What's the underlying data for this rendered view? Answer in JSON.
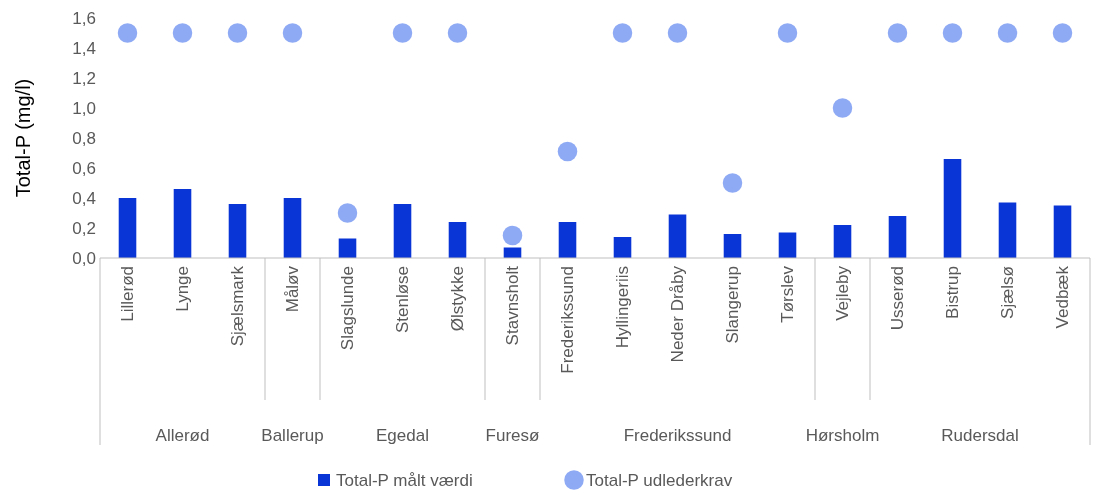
{
  "chart_data": {
    "type": "bar",
    "ylabel": "Total-P (mg/l)",
    "categories": [
      "Lillerød",
      "Lynge",
      "Sjælsmark",
      "Måløv",
      "Slagslunde",
      "Stenløse",
      "Ølstykke",
      "Stavnsholt",
      "Frederikssund",
      "Hyllingeriis",
      "Neder Dråby",
      "Slangerup",
      "Tørslev",
      "Vejleby",
      "Usserød",
      "Bistrup",
      "Sjælsø",
      "Vedbæk"
    ],
    "series": [
      {
        "name": "Total-P målt værdi",
        "color": "#0a35d6",
        "values": [
          0.4,
          0.46,
          0.36,
          0.4,
          0.13,
          0.36,
          0.24,
          0.07,
          0.24,
          0.14,
          0.29,
          0.16,
          0.17,
          0.22,
          0.28,
          0.66,
          0.37,
          0.35
        ]
      },
      {
        "name": "Total-P udlederkrav",
        "type": "scatter",
        "color": "#8faaf5",
        "values": [
          1.5,
          1.5,
          1.5,
          1.5,
          0.3,
          1.5,
          1.5,
          0.15,
          0.71,
          1.5,
          1.5,
          0.5,
          1.5,
          1.0,
          1.5,
          1.5,
          1.5,
          1.5
        ]
      }
    ],
    "ylim": [
      0,
      1.6
    ],
    "yticks": [
      {
        "value": 0,
        "label": "0,0"
      },
      {
        "value": 0.2,
        "label": "0,2"
      },
      {
        "value": 0.4,
        "label": "0,4"
      },
      {
        "value": 0.6,
        "label": "0,6"
      },
      {
        "value": 0.8,
        "label": "0,8"
      },
      {
        "value": 1.0,
        "label": "1,0"
      },
      {
        "value": 1.2,
        "label": "1,2"
      },
      {
        "value": 1.4,
        "label": "1,4"
      },
      {
        "value": 1.6,
        "label": "1,6"
      }
    ],
    "annotations": [
      "Allerød",
      "Ballerup",
      "Egedal",
      "Furesø",
      "Frederikssund",
      "Hørsholm",
      "Rudersdal"
    ],
    "marker": "circle",
    "legend": "bottom",
    "grid": false
  }
}
